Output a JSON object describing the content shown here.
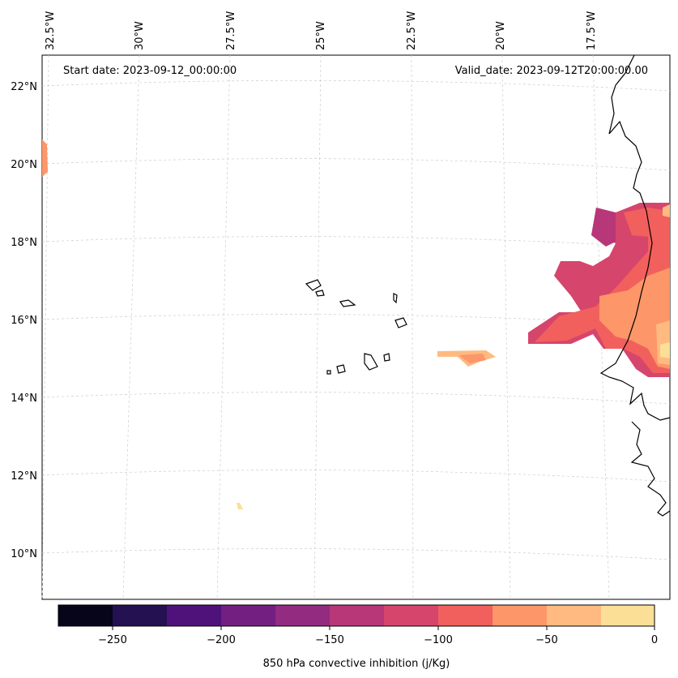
{
  "header": {
    "start_date": "Start date: 2023-09-12_00:00:00",
    "valid_date": "Valid_date: 2023-09-12T20:00:00.00"
  },
  "axes": {
    "longitude_labels": [
      "32.5°W",
      "30°W",
      "27.5°W",
      "25°W",
      "22.5°W",
      "20°W",
      "17.5°W"
    ],
    "latitude_labels": [
      "22°N",
      "20°N",
      "18°N",
      "16°N",
      "14°N",
      "12°N",
      "10°N"
    ]
  },
  "colorbar": {
    "label": "850 hPa convective inhibition (j/Kg)",
    "tick_labels": [
      "−250",
      "−200",
      "−150",
      "−100",
      "−50",
      "0"
    ],
    "colors": [
      "#06051a",
      "#231151",
      "#4f127b",
      "#721f81",
      "#932b80",
      "#b73779",
      "#d6456c",
      "#f1605d",
      "#fd9668",
      "#feba80",
      "#fcdf96",
      "#fcfdbf"
    ]
  },
  "field": {
    "variable": "850 hPa convective inhibition",
    "units": "j/Kg",
    "level_values": [
      -275,
      -250,
      -225,
      -200,
      -175,
      -150,
      -125,
      -100,
      -75,
      -50,
      -25,
      0
    ]
  }
}
